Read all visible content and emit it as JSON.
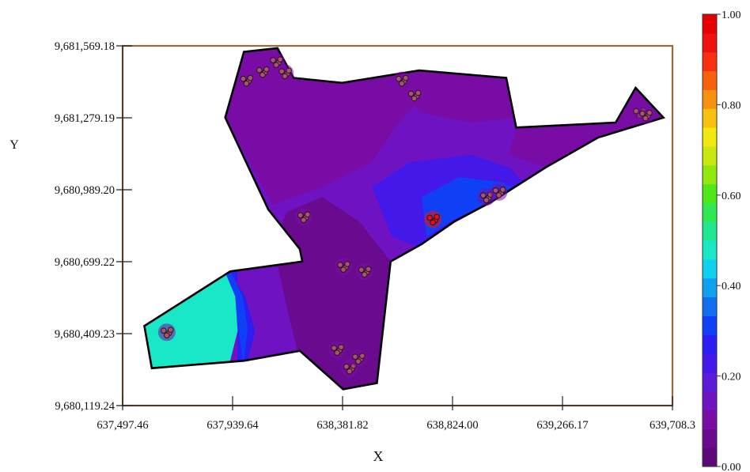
{
  "chart_data": {
    "type": "heatmap",
    "title": "",
    "xlabel": "X",
    "ylabel": "Y",
    "xlim": [
      637497.46,
      639708.3
    ],
    "ylim": [
      9680119.24,
      9681569.18
    ],
    "x_ticks": [
      "637,497.46",
      "637,939.64",
      "638,381.82",
      "638,824.00",
      "639,266.17",
      "639,708.3"
    ],
    "x_tick_values": [
      637497.46,
      637939.64,
      638381.82,
      638824.0,
      639266.17,
      639708.3
    ],
    "y_ticks": [
      "9,681,569.18",
      "9,681,279.19",
      "9,680,989.20",
      "9,680,699.22",
      "9,680,409.23",
      "9,680,119.24"
    ],
    "y_tick_values": [
      9681569.18,
      9681279.19,
      9680989.2,
      9680699.22,
      9680409.23,
      9680119.24
    ],
    "colorbar": {
      "range": [
        0.0,
        1.0
      ],
      "tick_labels": [
        "1.00",
        "0.80",
        "0.60",
        "0.40",
        "0.20",
        "0.00"
      ],
      "tick_values": [
        1.0,
        0.8,
        0.6,
        0.4,
        0.2,
        0.0
      ],
      "colors": [
        "#5c0a7a",
        "#6a0a8e",
        "#7a0ca6",
        "#6e12c2",
        "#5a1ad8",
        "#4418e8",
        "#2a1ef2",
        "#1040f5",
        "#1070f0",
        "#10a0f0",
        "#10d0f0",
        "#18e8c8",
        "#20e890",
        "#30e850",
        "#50e818",
        "#90e810",
        "#c8e810",
        "#f0e810",
        "#f8c010",
        "#f89010",
        "#f86010",
        "#f83010",
        "#f01010",
        "#e80000"
      ],
      "colors_bottom_to_top": true
    },
    "boundary": [
      [
        637585,
        9680440
      ],
      [
        637615,
        9680270
      ],
      [
        637985,
        9680300
      ],
      [
        638210,
        9680340
      ],
      [
        638384,
        9680185
      ],
      [
        638520,
        9680210
      ],
      [
        638575,
        9680700
      ],
      [
        638700,
        9680770
      ],
      [
        638830,
        9680860
      ],
      [
        638980,
        9680940
      ],
      [
        639200,
        9681080
      ],
      [
        639410,
        9681200
      ],
      [
        639672,
        9681280
      ],
      [
        639560,
        9681400
      ],
      [
        639480,
        9681260
      ],
      [
        639080,
        9681240
      ],
      [
        639040,
        9681440
      ],
      [
        638690,
        9681470
      ],
      [
        638380,
        9681420
      ],
      [
        638185,
        9681440
      ],
      [
        638120,
        9681560
      ],
      [
        637985,
        9681545
      ],
      [
        637910,
        9681280
      ],
      [
        638083,
        9680910
      ],
      [
        638210,
        9680750
      ],
      [
        638220,
        9680700
      ],
      [
        637930,
        9680660
      ]
    ],
    "zones": [
      {
        "value": 0.12,
        "polygon": [
          [
            637900,
            9681300
          ],
          [
            638000,
            9681560
          ],
          [
            638120,
            9681560
          ],
          [
            638200,
            9681440
          ],
          [
            638550,
            9681440
          ],
          [
            638700,
            9681470
          ],
          [
            638740,
            9681400
          ],
          [
            638600,
            9681250
          ],
          [
            638500,
            9681100
          ],
          [
            638300,
            9681000
          ],
          [
            638100,
            9680930
          ]
        ]
      },
      {
        "value": 0.08,
        "polygon": [
          [
            638200,
            9680340
          ],
          [
            638384,
            9680185
          ],
          [
            638520,
            9680210
          ],
          [
            638575,
            9680700
          ],
          [
            638450,
            9680860
          ],
          [
            638300,
            9680960
          ],
          [
            638160,
            9680900
          ],
          [
            638100,
            9680780
          ],
          [
            638150,
            9680550
          ]
        ]
      },
      {
        "value": 0.22,
        "polygon": [
          [
            638500,
            9681000
          ],
          [
            638650,
            9681100
          ],
          [
            638900,
            9681130
          ],
          [
            639050,
            9681080
          ],
          [
            639150,
            9680980
          ],
          [
            639000,
            9680930
          ],
          [
            638830,
            9680860
          ],
          [
            638680,
            9680760
          ],
          [
            638580,
            9680800
          ]
        ]
      },
      {
        "value": 0.3,
        "polygon": [
          [
            638700,
            9680960
          ],
          [
            638850,
            9681040
          ],
          [
            639020,
            9681020
          ],
          [
            639100,
            9680980
          ],
          [
            638980,
            9680940
          ],
          [
            638830,
            9680870
          ],
          [
            638720,
            9680800
          ]
        ]
      },
      {
        "value": 0.12,
        "polygon": [
          [
            639080,
            9681240
          ],
          [
            639480,
            9681260
          ],
          [
            639560,
            9681400
          ],
          [
            639672,
            9681280
          ],
          [
            639410,
            9681200
          ],
          [
            639200,
            9681080
          ],
          [
            639050,
            9681130
          ]
        ]
      },
      {
        "value": 0.1,
        "polygon": [
          [
            638530,
            9681470
          ],
          [
            638700,
            9681470
          ],
          [
            639040,
            9681440
          ],
          [
            639070,
            9681280
          ],
          [
            638900,
            9681260
          ],
          [
            638700,
            9681300
          ]
        ]
      },
      {
        "value": 0.26,
        "polygon": [
          [
            637930,
            9680660
          ],
          [
            637990,
            9680560
          ],
          [
            638030,
            9680420
          ],
          [
            638000,
            9680300
          ],
          [
            637960,
            9680300
          ],
          [
            637960,
            9680660
          ]
        ]
      },
      {
        "value": 0.33,
        "polygon": [
          [
            637930,
            9680660
          ],
          [
            637980,
            9680560
          ],
          [
            638000,
            9680430
          ],
          [
            637985,
            9680300
          ],
          [
            637980,
            9680300
          ],
          [
            637945,
            9680560
          ],
          [
            637910,
            9680655
          ]
        ]
      },
      {
        "value": 0.46,
        "polygon": [
          [
            637585,
            9680440
          ],
          [
            637615,
            9680270
          ],
          [
            637930,
            9680300
          ],
          [
            637960,
            9680420
          ],
          [
            637950,
            9680560
          ],
          [
            637910,
            9680655
          ]
        ]
      }
    ],
    "sample_clusters": [
      {
        "x": 637675,
        "y": 9680415,
        "value": 0.1
      },
      {
        "x": 637995,
        "y": 9681430,
        "value": 0.12
      },
      {
        "x": 638060,
        "y": 9681465,
        "value": 0.1
      },
      {
        "x": 638115,
        "y": 9681505,
        "value": 0.1
      },
      {
        "x": 638150,
        "y": 9681460,
        "value": 0.1
      },
      {
        "x": 638620,
        "y": 9681430,
        "value": 0.1
      },
      {
        "x": 638670,
        "y": 9681370,
        "value": 0.1
      },
      {
        "x": 639575,
        "y": 9681300,
        "value": 0.12
      },
      {
        "x": 639600,
        "y": 9681290,
        "value": 0.12
      },
      {
        "x": 638225,
        "y": 9680880,
        "value": 0.1
      },
      {
        "x": 638385,
        "y": 9680680,
        "value": 0.1
      },
      {
        "x": 638470,
        "y": 9680660,
        "value": 0.1
      },
      {
        "x": 638360,
        "y": 9680345,
        "value": 0.1
      },
      {
        "x": 638410,
        "y": 9680270,
        "value": 0.1
      },
      {
        "x": 638445,
        "y": 9680310,
        "value": 0.1
      },
      {
        "x": 638745,
        "y": 9680870,
        "value": 0.95
      },
      {
        "x": 638960,
        "y": 9680960,
        "value": 0.1
      },
      {
        "x": 639010,
        "y": 9680980,
        "value": 0.1
      }
    ],
    "grid": false,
    "legend": "right"
  }
}
